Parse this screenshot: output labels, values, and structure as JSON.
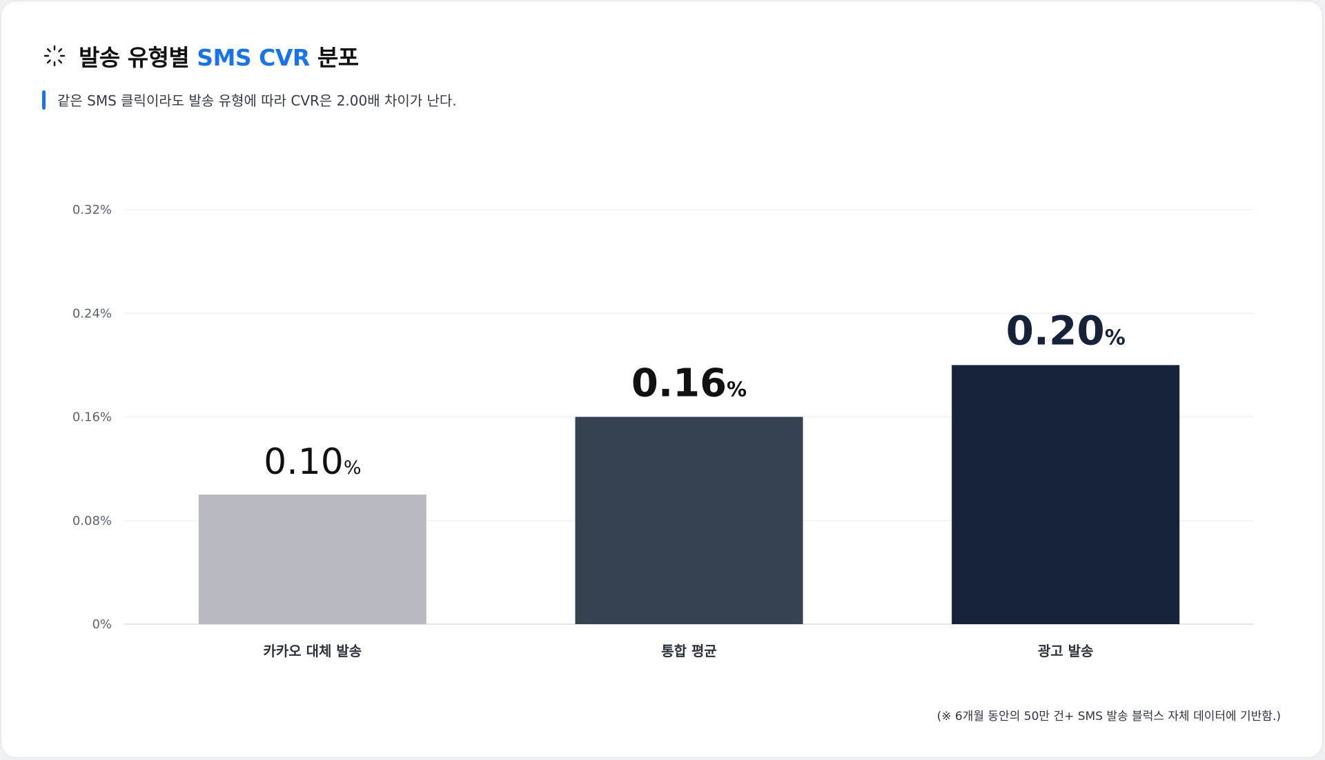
{
  "header": {
    "title_prefix": "발송 유형별",
    "title_accent": "SMS CVR",
    "title_suffix": "분포",
    "icon": "loading-spinner-icon"
  },
  "subtitle": "같은 SMS 클릭이라도 발송 유형에 따라 CVR은 2.00배 차이가 난다.",
  "footnote": "(※ 6개월 동안의 50만 건+ SMS 발송 블럭스 자체 데이터에 기반함.)",
  "colors": {
    "accent": "#1a73e8",
    "bar_kakao": "#b8b8c1",
    "bar_avg": "#374250",
    "bar_ad": "#16233a"
  },
  "chart_data": {
    "type": "bar",
    "categories": [
      "카카오 대체 발송",
      "통합 평균",
      "광고 발송"
    ],
    "values": [
      0.1,
      0.16,
      0.2
    ],
    "value_labels": [
      {
        "number": "0.10",
        "unit": "%"
      },
      {
        "number": "0.16",
        "unit": "%"
      },
      {
        "number": "0.20",
        "unit": "%"
      }
    ],
    "ylim": [
      0,
      0.32
    ],
    "yticks": [
      0,
      0.08,
      0.16,
      0.24,
      0.32
    ],
    "ytick_labels": [
      "0%",
      "0.08%",
      "0.16%",
      "0.24%",
      "0.32%"
    ],
    "grid": true,
    "xlabel": "",
    "ylabel": ""
  }
}
